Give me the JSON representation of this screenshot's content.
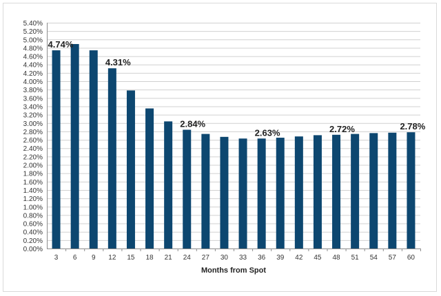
{
  "chart_data": {
    "type": "bar",
    "xlabel": "Months from Spot",
    "ylabel": "",
    "ylim": [
      0,
      5.4
    ],
    "ytick_step": 0.2,
    "ytick_format": "percent_2dp",
    "grid": "horizontal",
    "bar_color": "#0d4770",
    "categories": [
      "3",
      "6",
      "9",
      "12",
      "15",
      "18",
      "21",
      "24",
      "27",
      "30",
      "33",
      "36",
      "39",
      "42",
      "45",
      "48",
      "51",
      "54",
      "57",
      "60"
    ],
    "values": [
      4.74,
      4.89,
      4.74,
      4.31,
      3.78,
      3.35,
      3.04,
      2.84,
      2.74,
      2.67,
      2.63,
      2.63,
      2.65,
      2.68,
      2.71,
      2.72,
      2.74,
      2.76,
      2.77,
      2.78
    ],
    "data_labels": [
      {
        "index": 0,
        "text": "4.74%"
      },
      {
        "index": 3,
        "text": "4.31%"
      },
      {
        "index": 7,
        "text": "2.84%"
      },
      {
        "index": 11,
        "text": "2.63%"
      },
      {
        "index": 15,
        "text": "2.72%"
      },
      {
        "index": 19,
        "text": "2.78%"
      }
    ]
  }
}
